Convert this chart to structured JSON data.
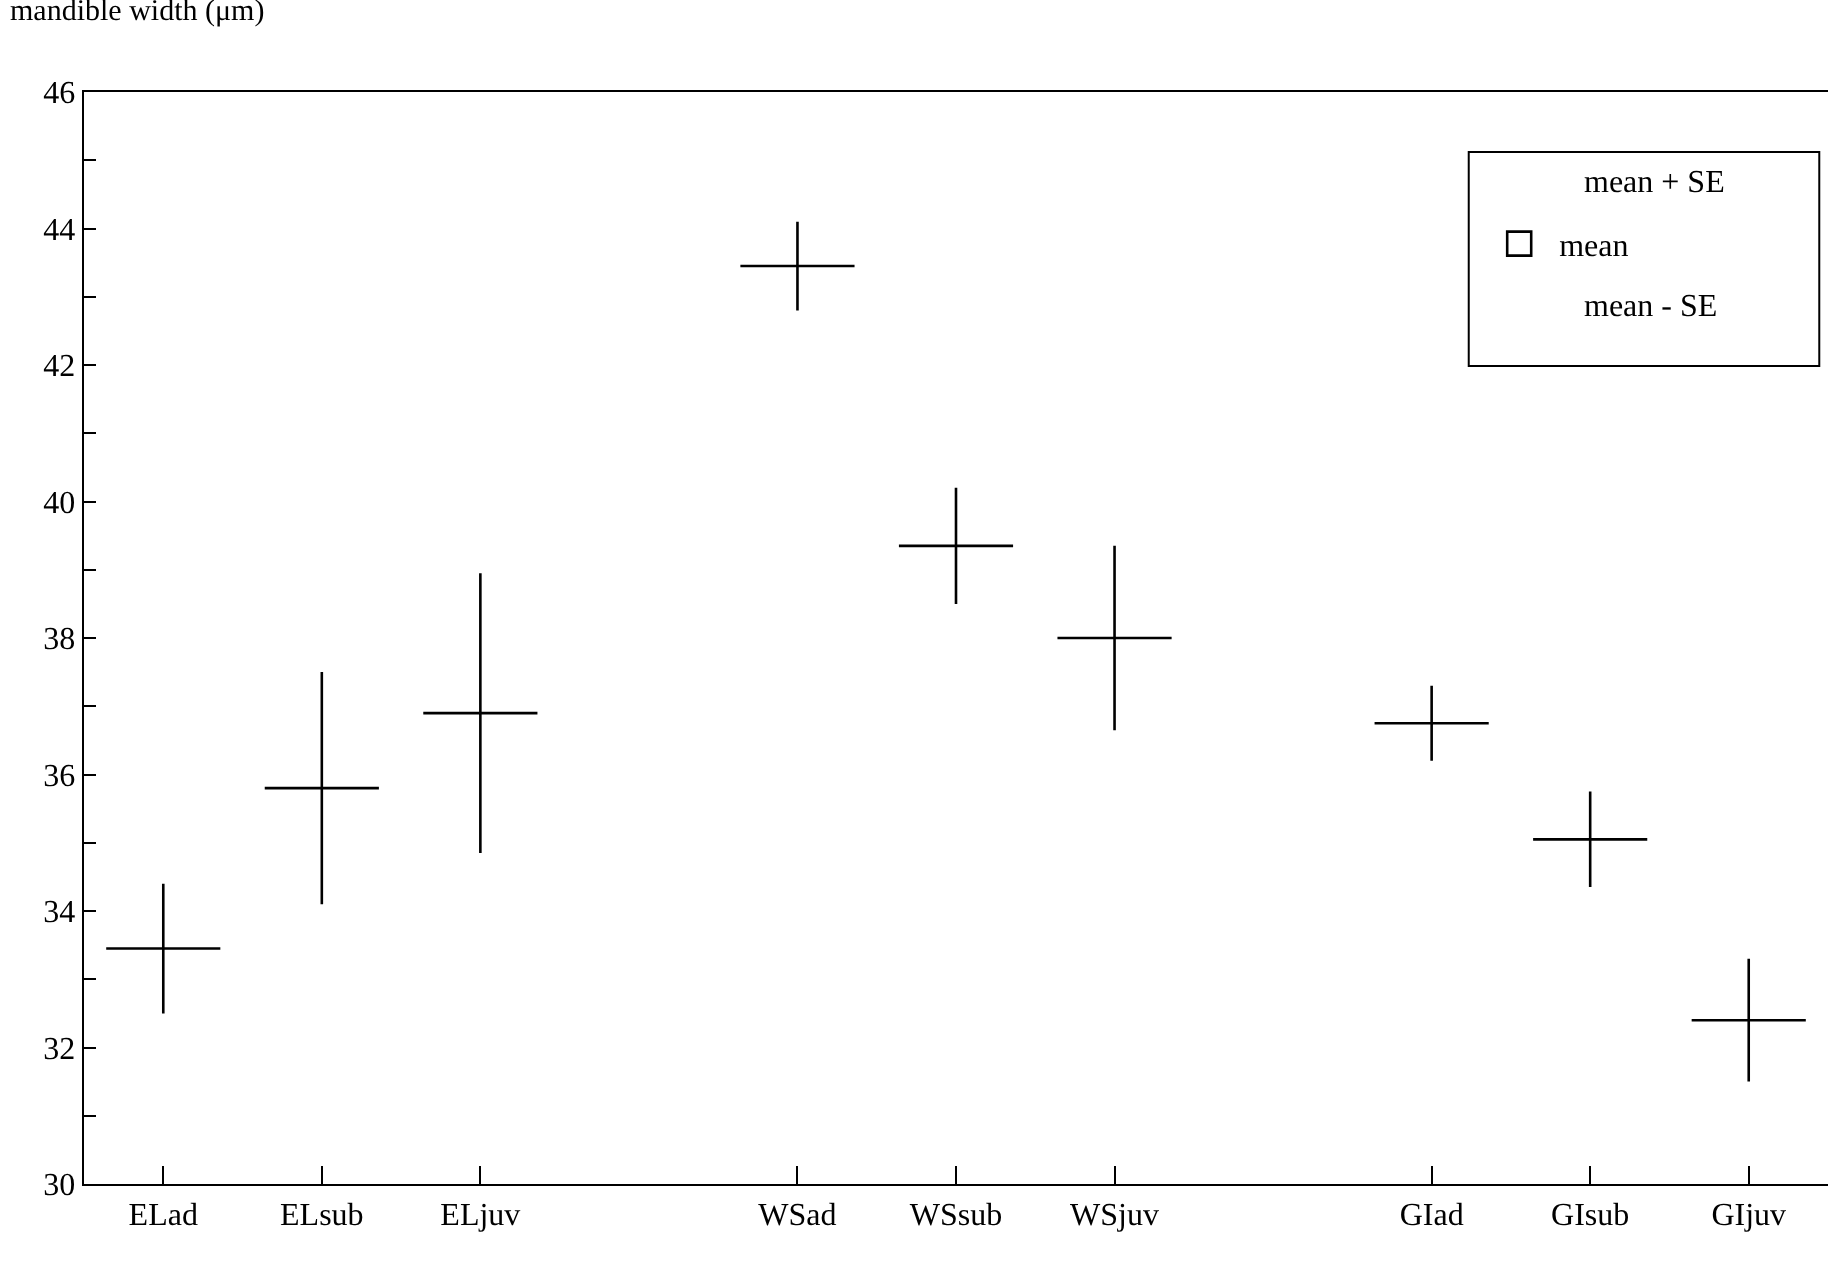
{
  "chart_data": {
    "type": "box",
    "ylabel": "mandible width (μm)",
    "categories": [
      "ELad",
      "ELsub",
      "ELjuv",
      null,
      "WSad",
      "WSsub",
      "WSjuv",
      null,
      "GIad",
      "GIsub",
      "GIjuv"
    ],
    "series": [
      {
        "name": "mean",
        "color": "#000000",
        "boxes": [
          {
            "low": 32.5,
            "q1": 33.45,
            "median": 33.45,
            "q3": 33.45,
            "high": 34.4
          },
          {
            "low": 34.1,
            "q1": 35.8,
            "median": 35.8,
            "q3": 35.8,
            "high": 37.5
          },
          {
            "low": 34.85,
            "q1": 36.9,
            "median": 36.9,
            "q3": 36.9,
            "high": 38.95
          },
          null,
          {
            "low": 42.8,
            "q1": 43.45,
            "median": 43.45,
            "q3": 43.45,
            "high": 44.1
          },
          {
            "low": 38.5,
            "q1": 39.35,
            "median": 39.35,
            "q3": 39.35,
            "high": 40.2
          },
          {
            "low": 36.65,
            "q1": 38.0,
            "median": 38.0,
            "q3": 38.0,
            "high": 39.35
          },
          null,
          {
            "low": 36.2,
            "q1": 36.75,
            "median": 36.75,
            "q3": 36.75,
            "high": 37.3
          },
          {
            "low": 34.35,
            "q1": 35.05,
            "median": 35.05,
            "q3": 35.05,
            "high": 35.75
          },
          {
            "low": 31.5,
            "q1": 32.4,
            "median": 32.4,
            "q3": 32.4,
            "high": 33.3
          }
        ]
      }
    ],
    "ylim": [
      30,
      46
    ],
    "yticks": [
      30,
      {
        "value": 31,
        "label": null
      },
      32,
      {
        "value": 33,
        "label": null
      },
      34,
      {
        "value": 35,
        "label": null
      },
      36,
      {
        "value": 37,
        "label": null
      },
      38,
      {
        "value": 39,
        "label": null
      },
      40,
      {
        "value": 41,
        "label": null
      },
      42,
      {
        "value": 43,
        "label": null
      },
      44,
      {
        "value": 45,
        "label": null
      },
      46
    ],
    "annotations": [
      "mean + SE",
      "mean - SE"
    ],
    "legend": "top right",
    "grid": false
  }
}
